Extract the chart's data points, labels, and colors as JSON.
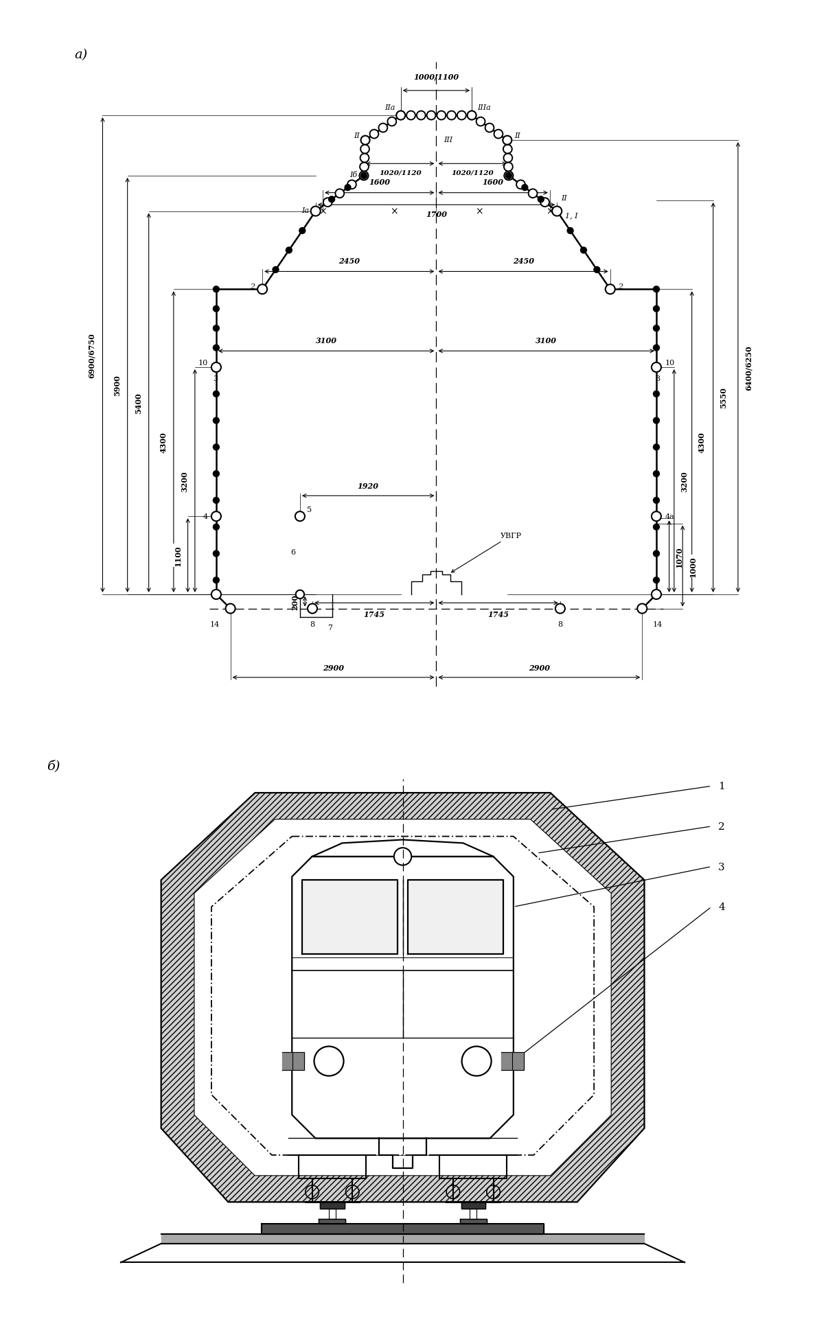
{
  "bg_color": "#ffffff",
  "line_color": "#000000",
  "fig_width": 12.22,
  "fig_height": 19.33,
  "dpi": 100,
  "part_a": {
    "profile_outer": [
      [
        -2900,
        -200
      ],
      [
        -3100,
        0
      ],
      [
        -3100,
        3200
      ],
      [
        -2450,
        4300
      ],
      [
        -1700,
        5400
      ],
      [
        -1020,
        5900
      ],
      [
        -1000,
        6400
      ],
      [
        -500,
        6750
      ],
      [
        500,
        6750
      ],
      [
        1000,
        6400
      ],
      [
        1020,
        5900
      ],
      [
        1700,
        5400
      ],
      [
        2450,
        4300
      ],
      [
        3100,
        3200
      ],
      [
        3100,
        0
      ],
      [
        2900,
        -200
      ]
    ],
    "xlim": [
      -5200,
      5200
    ],
    "ylim": [
      -1500,
      7800
    ]
  }
}
